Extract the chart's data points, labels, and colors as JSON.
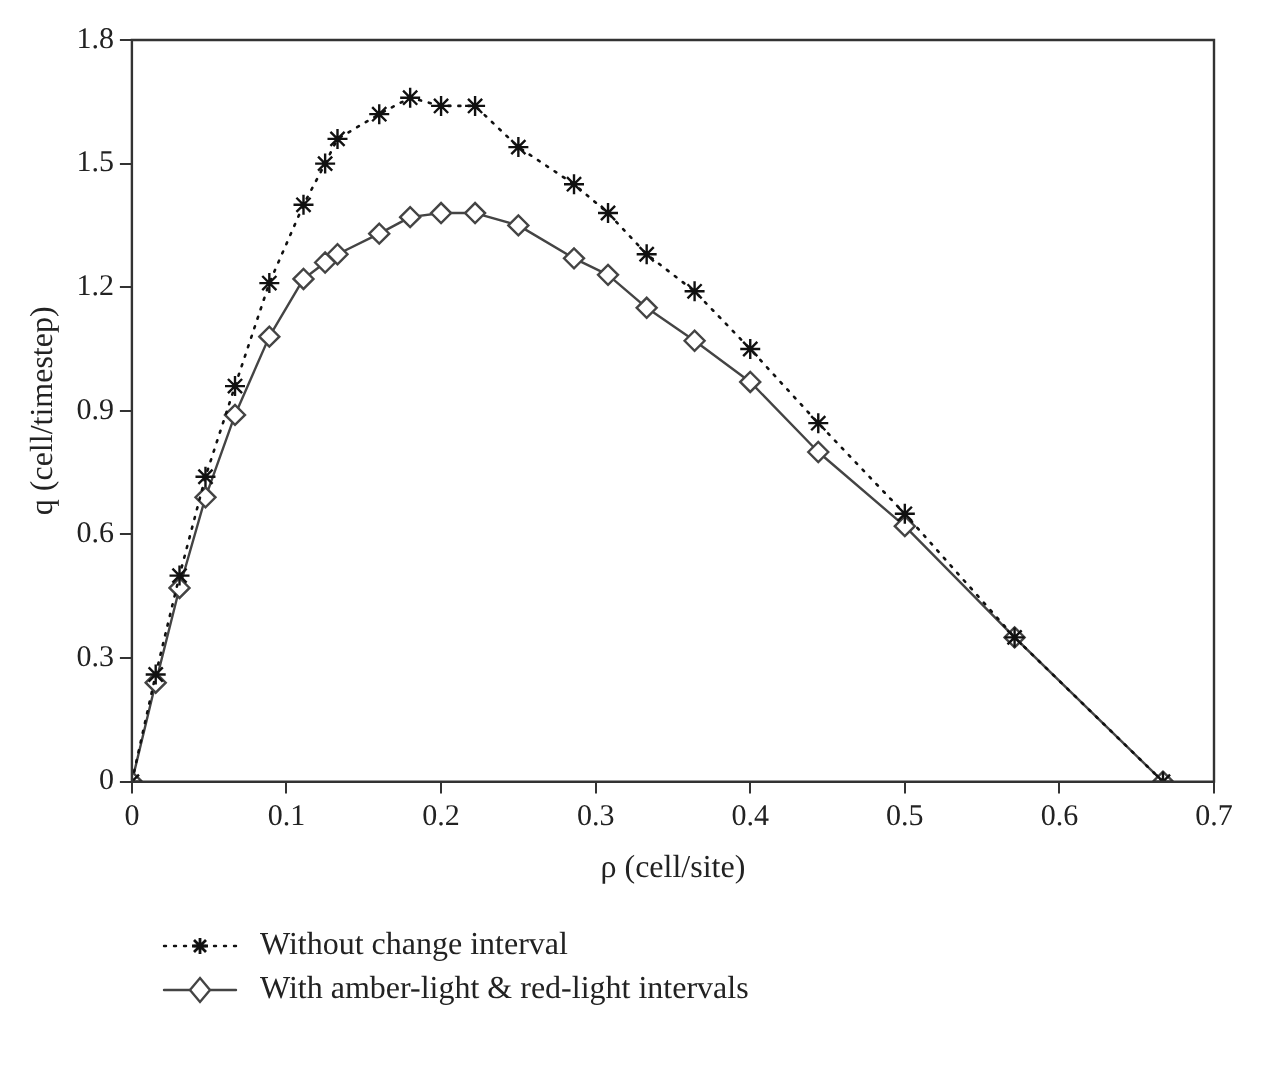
{
  "chart_data": {
    "type": "line",
    "xlabel": "ρ (cell/site)",
    "ylabel": "q (cell/timestep)",
    "xlim": [
      0,
      0.7
    ],
    "xticks": [
      0,
      0.1,
      0.2,
      0.3,
      0.4,
      0.5,
      0.6,
      0.7
    ],
    "ylim": [
      0,
      1.8
    ],
    "yticks": [
      0,
      0.3,
      0.6,
      0.9,
      1.2,
      1.5,
      1.8
    ],
    "x": [
      0,
      0.0154,
      0.0308,
      0.0476,
      0.0667,
      0.0889,
      0.111,
      0.125,
      0.133,
      0.16,
      0.18,
      0.2,
      0.222,
      0.25,
      0.286,
      0.308,
      0.333,
      0.364,
      0.4,
      0.444,
      0.5,
      0.571,
      0.667
    ],
    "grid": false,
    "legend": "bottom",
    "series": [
      {
        "name": "Without change interval",
        "color": "#111111",
        "marker": "cross",
        "line_style": "dotted",
        "values": [
          0,
          0.26,
          0.5,
          0.74,
          0.96,
          1.21,
          1.4,
          1.5,
          1.56,
          1.62,
          1.66,
          1.64,
          1.64,
          1.54,
          1.45,
          1.38,
          1.28,
          1.19,
          1.05,
          0.87,
          0.65,
          0.35,
          0
        ]
      },
      {
        "name": "With amber-light & red-light intervals",
        "color": "#444444",
        "marker": "diamond",
        "line_style": "solid",
        "values": [
          0,
          0.24,
          0.47,
          0.69,
          0.89,
          1.08,
          1.22,
          1.26,
          1.28,
          1.33,
          1.37,
          1.38,
          1.38,
          1.35,
          1.27,
          1.23,
          1.15,
          1.07,
          0.97,
          0.8,
          0.62,
          0.35,
          0
        ]
      }
    ]
  }
}
